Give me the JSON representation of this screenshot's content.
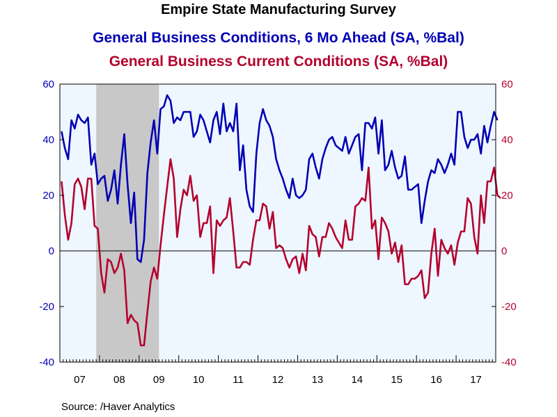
{
  "chart_data": {
    "type": "line",
    "title": "Empire State Manufacturing Survey",
    "source": "Source:  /Haver Analytics",
    "ylim": [
      -40,
      60
    ],
    "y_ticks": [
      "60",
      "40",
      "20",
      "0",
      "-20",
      "-40"
    ],
    "x_ticks": [
      "07",
      "08",
      "09",
      "10",
      "11",
      "12",
      "13",
      "14",
      "15",
      "16",
      "17"
    ],
    "x_start": "2007-01",
    "recession_shading": [
      "2007-12",
      "2009-06"
    ],
    "grid": false,
    "colors": {
      "background": "#eef6ff",
      "recession": "#c8c8c8",
      "axis": "#000000"
    },
    "series": [
      {
        "name": "General Business Conditions, 6 Mo Ahead (SA, %Bal)",
        "color": "#0000b4",
        "values": [
          43,
          37,
          33,
          47,
          44,
          49,
          47,
          46,
          48,
          31,
          35,
          24,
          26,
          27,
          18,
          22,
          29,
          17,
          31,
          42,
          24,
          10,
          21,
          -3,
          -4,
          4,
          28,
          39,
          47,
          35,
          51,
          52,
          56,
          54,
          46,
          48,
          47,
          50,
          50,
          50,
          41,
          43,
          49,
          47,
          43,
          39,
          47,
          50,
          42,
          53,
          43,
          46,
          43,
          53,
          29,
          38,
          22,
          16,
          14,
          35,
          46,
          51,
          47,
          45,
          41,
          33,
          29,
          26,
          22,
          19,
          26,
          20,
          19,
          20,
          22,
          33,
          35,
          30,
          26,
          33,
          37,
          40,
          41,
          38,
          37,
          36,
          41,
          35,
          38,
          41,
          42,
          29,
          46,
          46,
          44,
          48,
          35,
          47,
          29,
          31,
          36,
          30,
          26,
          27,
          34,
          22,
          22,
          23,
          24,
          10,
          18,
          25,
          29,
          28,
          33,
          31,
          28,
          31,
          35,
          31,
          50,
          50,
          41,
          37,
          40,
          40,
          42,
          35,
          45,
          39,
          45,
          50,
          47
        ]
      },
      {
        "name": "General Business Current Conditions (SA, %Bal)",
        "color": "#b4002d",
        "values": [
          25,
          13,
          4,
          10,
          24,
          26,
          23,
          15,
          26,
          26,
          9,
          8,
          -8,
          -15,
          -3,
          -4,
          -8,
          -6,
          -1,
          -7,
          -26,
          -23,
          -25,
          -26,
          -34,
          -34,
          -22,
          -11,
          -6,
          -10,
          2,
          13,
          23,
          33,
          26,
          5,
          15,
          22,
          20,
          27,
          18,
          20,
          5,
          10,
          10,
          16,
          -8,
          11,
          9,
          11,
          12,
          19,
          7,
          -6,
          -6,
          -4,
          -4,
          -5,
          4,
          11,
          11,
          17,
          16,
          8,
          14,
          1,
          2,
          1,
          -3,
          -6,
          -3,
          -2,
          -8,
          -1,
          -7,
          9,
          6,
          5,
          -2,
          5,
          5,
          10,
          8,
          5,
          3,
          1,
          11,
          4,
          4,
          16,
          17,
          19,
          18,
          30,
          8,
          11,
          -3,
          12,
          10,
          7,
          -1,
          3,
          -4,
          2,
          -12,
          -12,
          -10,
          -10,
          -9,
          -7,
          -17,
          -15,
          -1,
          8,
          -9,
          4,
          1,
          -1,
          2,
          -5,
          3,
          7,
          7,
          19,
          17,
          5,
          -1,
          20,
          10,
          25,
          25,
          30,
          20,
          19
        ]
      }
    ]
  }
}
